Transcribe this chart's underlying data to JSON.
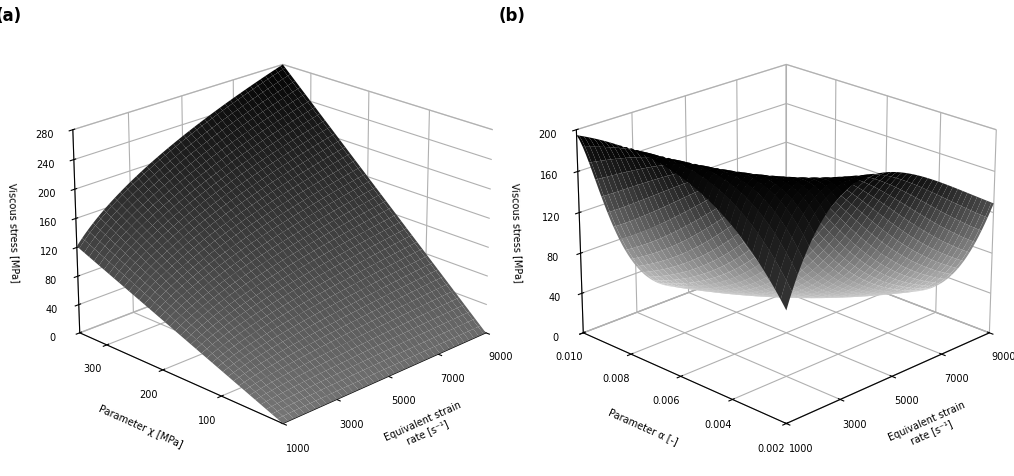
{
  "title_a": "(a)",
  "title_b": "(b)",
  "stress_label": "Viscous stress [MPa]",
  "strainrate_label": "Equivalent strain\nrate [s⁻¹]",
  "chi_label": "Parameter χ [MPa]",
  "alpha_label": "Parameter α [-]",
  "strain_rate_min": 1000,
  "strain_rate_max": 9000,
  "chi_min": 0,
  "chi_max": 350,
  "alpha_min": 0.002,
  "alpha_max": 0.01,
  "stress_a_max": 280,
  "stress_b_max": 200,
  "n_points": 80,
  "elev_a": 22,
  "azim_a": -135,
  "elev_b": 22,
  "azim_b": -135,
  "chi_ticks": [
    100,
    200,
    300
  ],
  "alpha_ticks": [
    0.002,
    0.004,
    0.006,
    0.008,
    0.01
  ],
  "strain_ticks": [
    1000,
    3000,
    5000,
    7000,
    9000
  ],
  "stress_a_ticks": [
    0,
    40,
    80,
    120,
    160,
    200,
    240,
    280
  ],
  "stress_b_ticks": [
    0,
    40,
    80,
    120,
    160,
    200
  ],
  "background_color": "#ffffff"
}
